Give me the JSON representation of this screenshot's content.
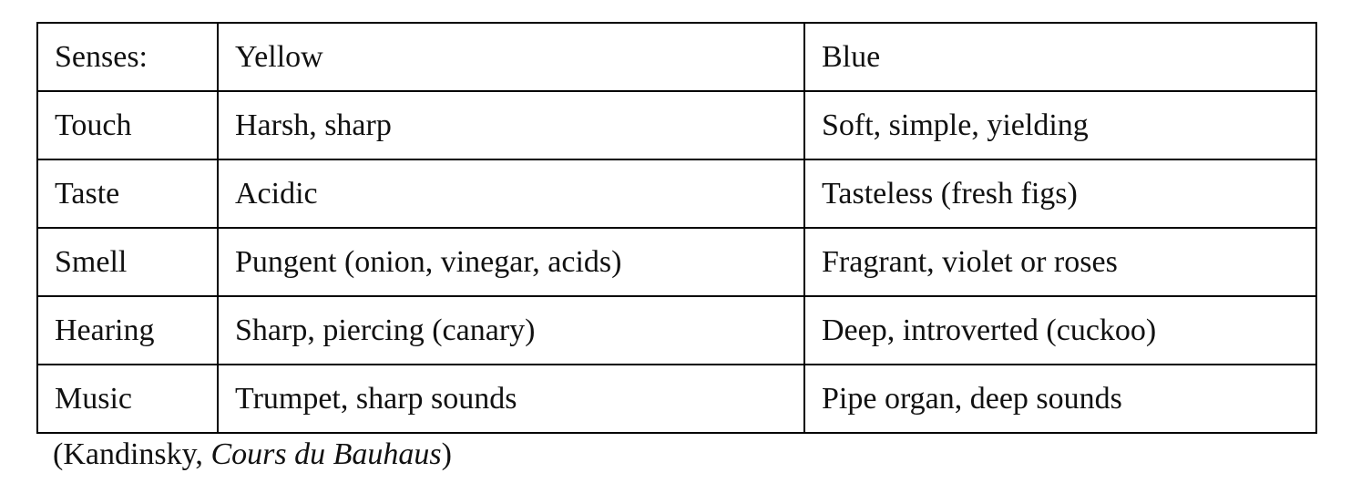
{
  "table": {
    "header": [
      "Senses:",
      "Yellow",
      "Blue"
    ],
    "rows": [
      [
        "Touch",
        "Harsh, sharp",
        "Soft, simple, yielding"
      ],
      [
        "Taste",
        "Acidic",
        "Tasteless (fresh figs)"
      ],
      [
        "Smell",
        "Pungent (onion, vinegar, acids)",
        "Fragrant, violet or roses"
      ],
      [
        "Hearing",
        "Sharp, piercing (canary)",
        "Deep, introverted (cuckoo)"
      ],
      [
        "Music",
        "Trumpet, sharp sounds",
        "Pipe organ, deep sounds"
      ]
    ]
  },
  "caption": {
    "open": "(Kandinsky, ",
    "work": "Cours du Bauhaus",
    "close": ")"
  }
}
